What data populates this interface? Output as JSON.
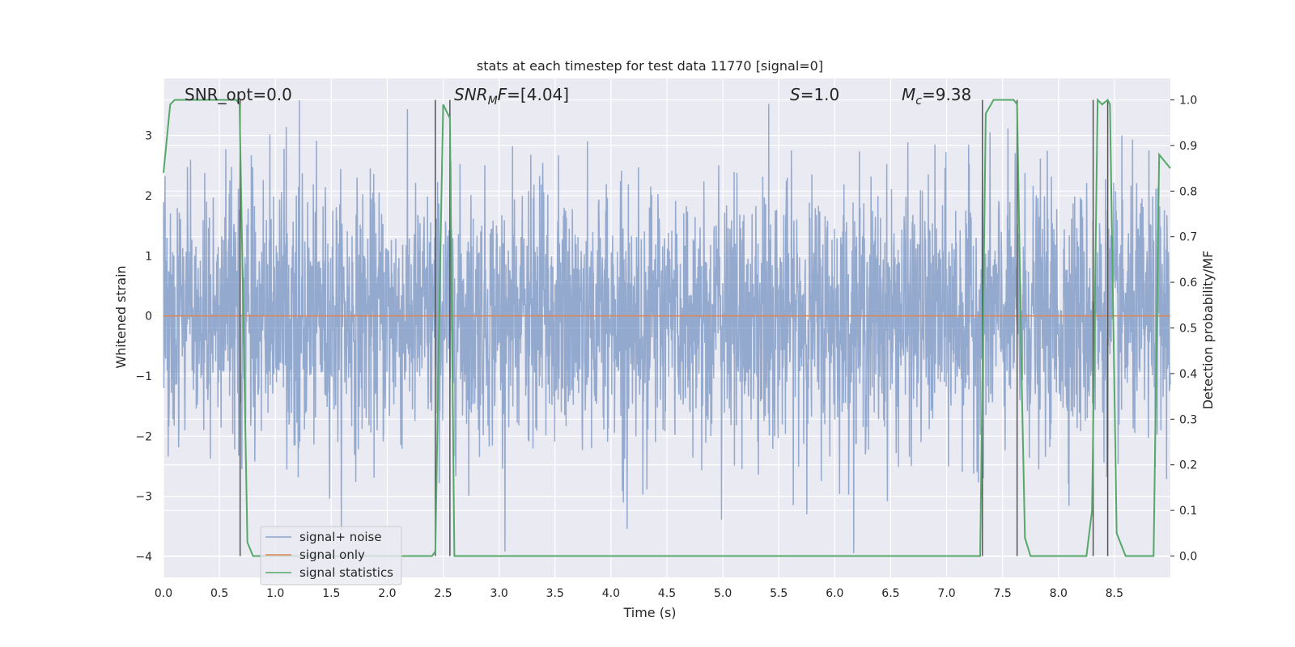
{
  "chart_data": {
    "type": "line",
    "title": "stats at each timestep for test data 11770 [signal=0]",
    "xlabel": "Time (s)",
    "ylabel": "Whitened strain",
    "y2label": "Detection probability/MF",
    "xlim": [
      0.0,
      9.0
    ],
    "ylim": [
      -4.35,
      3.95
    ],
    "y2lim": [
      -0.047,
      1.047
    ],
    "xticks": [
      "0.0",
      "0.5",
      "1.0",
      "1.5",
      "2.0",
      "2.5",
      "3.0",
      "3.5",
      "4.0",
      "4.5",
      "5.0",
      "5.5",
      "6.0",
      "6.5",
      "7.0",
      "7.5",
      "8.0",
      "8.5"
    ],
    "yticks": [
      "3",
      "2",
      "1",
      "0",
      "−1",
      "−2",
      "−3",
      "−4"
    ],
    "y2ticks": [
      "1.0",
      "0.9",
      "0.8",
      "0.7",
      "0.6",
      "0.5",
      "0.4",
      "0.3",
      "0.2",
      "0.1",
      "0.0"
    ],
    "grid": true,
    "legend_position": "lower-left",
    "annotations": {
      "snr_opt": "SNR_opt=0.0",
      "snr_mf_main": "SNR",
      "snr_mf_sub": "M",
      "snr_mf_rest": "F",
      "snr_mf_value": "=[4.04]",
      "s_symbol": "S",
      "s_value": "=1.0",
      "mc_symbol": "M",
      "mc_sub": "c",
      "mc_value": "=9.38"
    },
    "series": [
      {
        "name": "signal+ noise",
        "color": "#4c72b0",
        "description": "whitened noise trace, amplitude roughly ±1.3 dense, peaks to ±3.6",
        "envelope_y": [
          -4.0,
          3.6
        ]
      },
      {
        "name": "signal only",
        "color": "#dd8452",
        "x": [
          0.0,
          9.0
        ],
        "y": [
          0.0,
          0.0
        ]
      },
      {
        "name": "signal statistics",
        "color": "#55a868",
        "axis": "right",
        "x": [
          0.0,
          0.06,
          0.1,
          0.2,
          0.5,
          0.65,
          0.68,
          0.75,
          0.8,
          0.85,
          1.0,
          2.0,
          2.4,
          2.43,
          2.47,
          2.5,
          2.56,
          2.6,
          2.65,
          3.0,
          7.0,
          7.3,
          7.35,
          7.42,
          7.5,
          7.6,
          7.63,
          7.67,
          7.7,
          7.75,
          8.0,
          8.25,
          8.3,
          8.35,
          8.39,
          8.44,
          8.46,
          8.52,
          8.6,
          8.7,
          8.8,
          8.85,
          8.9,
          9.0
        ],
        "y": [
          0.84,
          0.99,
          1.0,
          1.0,
          1.0,
          1.0,
          0.99,
          0.03,
          0.0,
          0.0,
          0.0,
          0.0,
          0.0,
          0.01,
          0.6,
          0.99,
          0.96,
          0.0,
          0.0,
          0.0,
          0.0,
          0.0,
          0.97,
          1.0,
          1.0,
          1.0,
          0.99,
          0.4,
          0.04,
          0.0,
          0.0,
          0.0,
          0.1,
          1.0,
          0.99,
          1.0,
          0.99,
          0.05,
          0.0,
          0.0,
          0.0,
          0.0,
          0.88,
          0.85
        ]
      }
    ],
    "vertical_markers_x": [
      0.685,
      2.43,
      2.56,
      7.32,
      7.63,
      8.31,
      8.44
    ]
  }
}
